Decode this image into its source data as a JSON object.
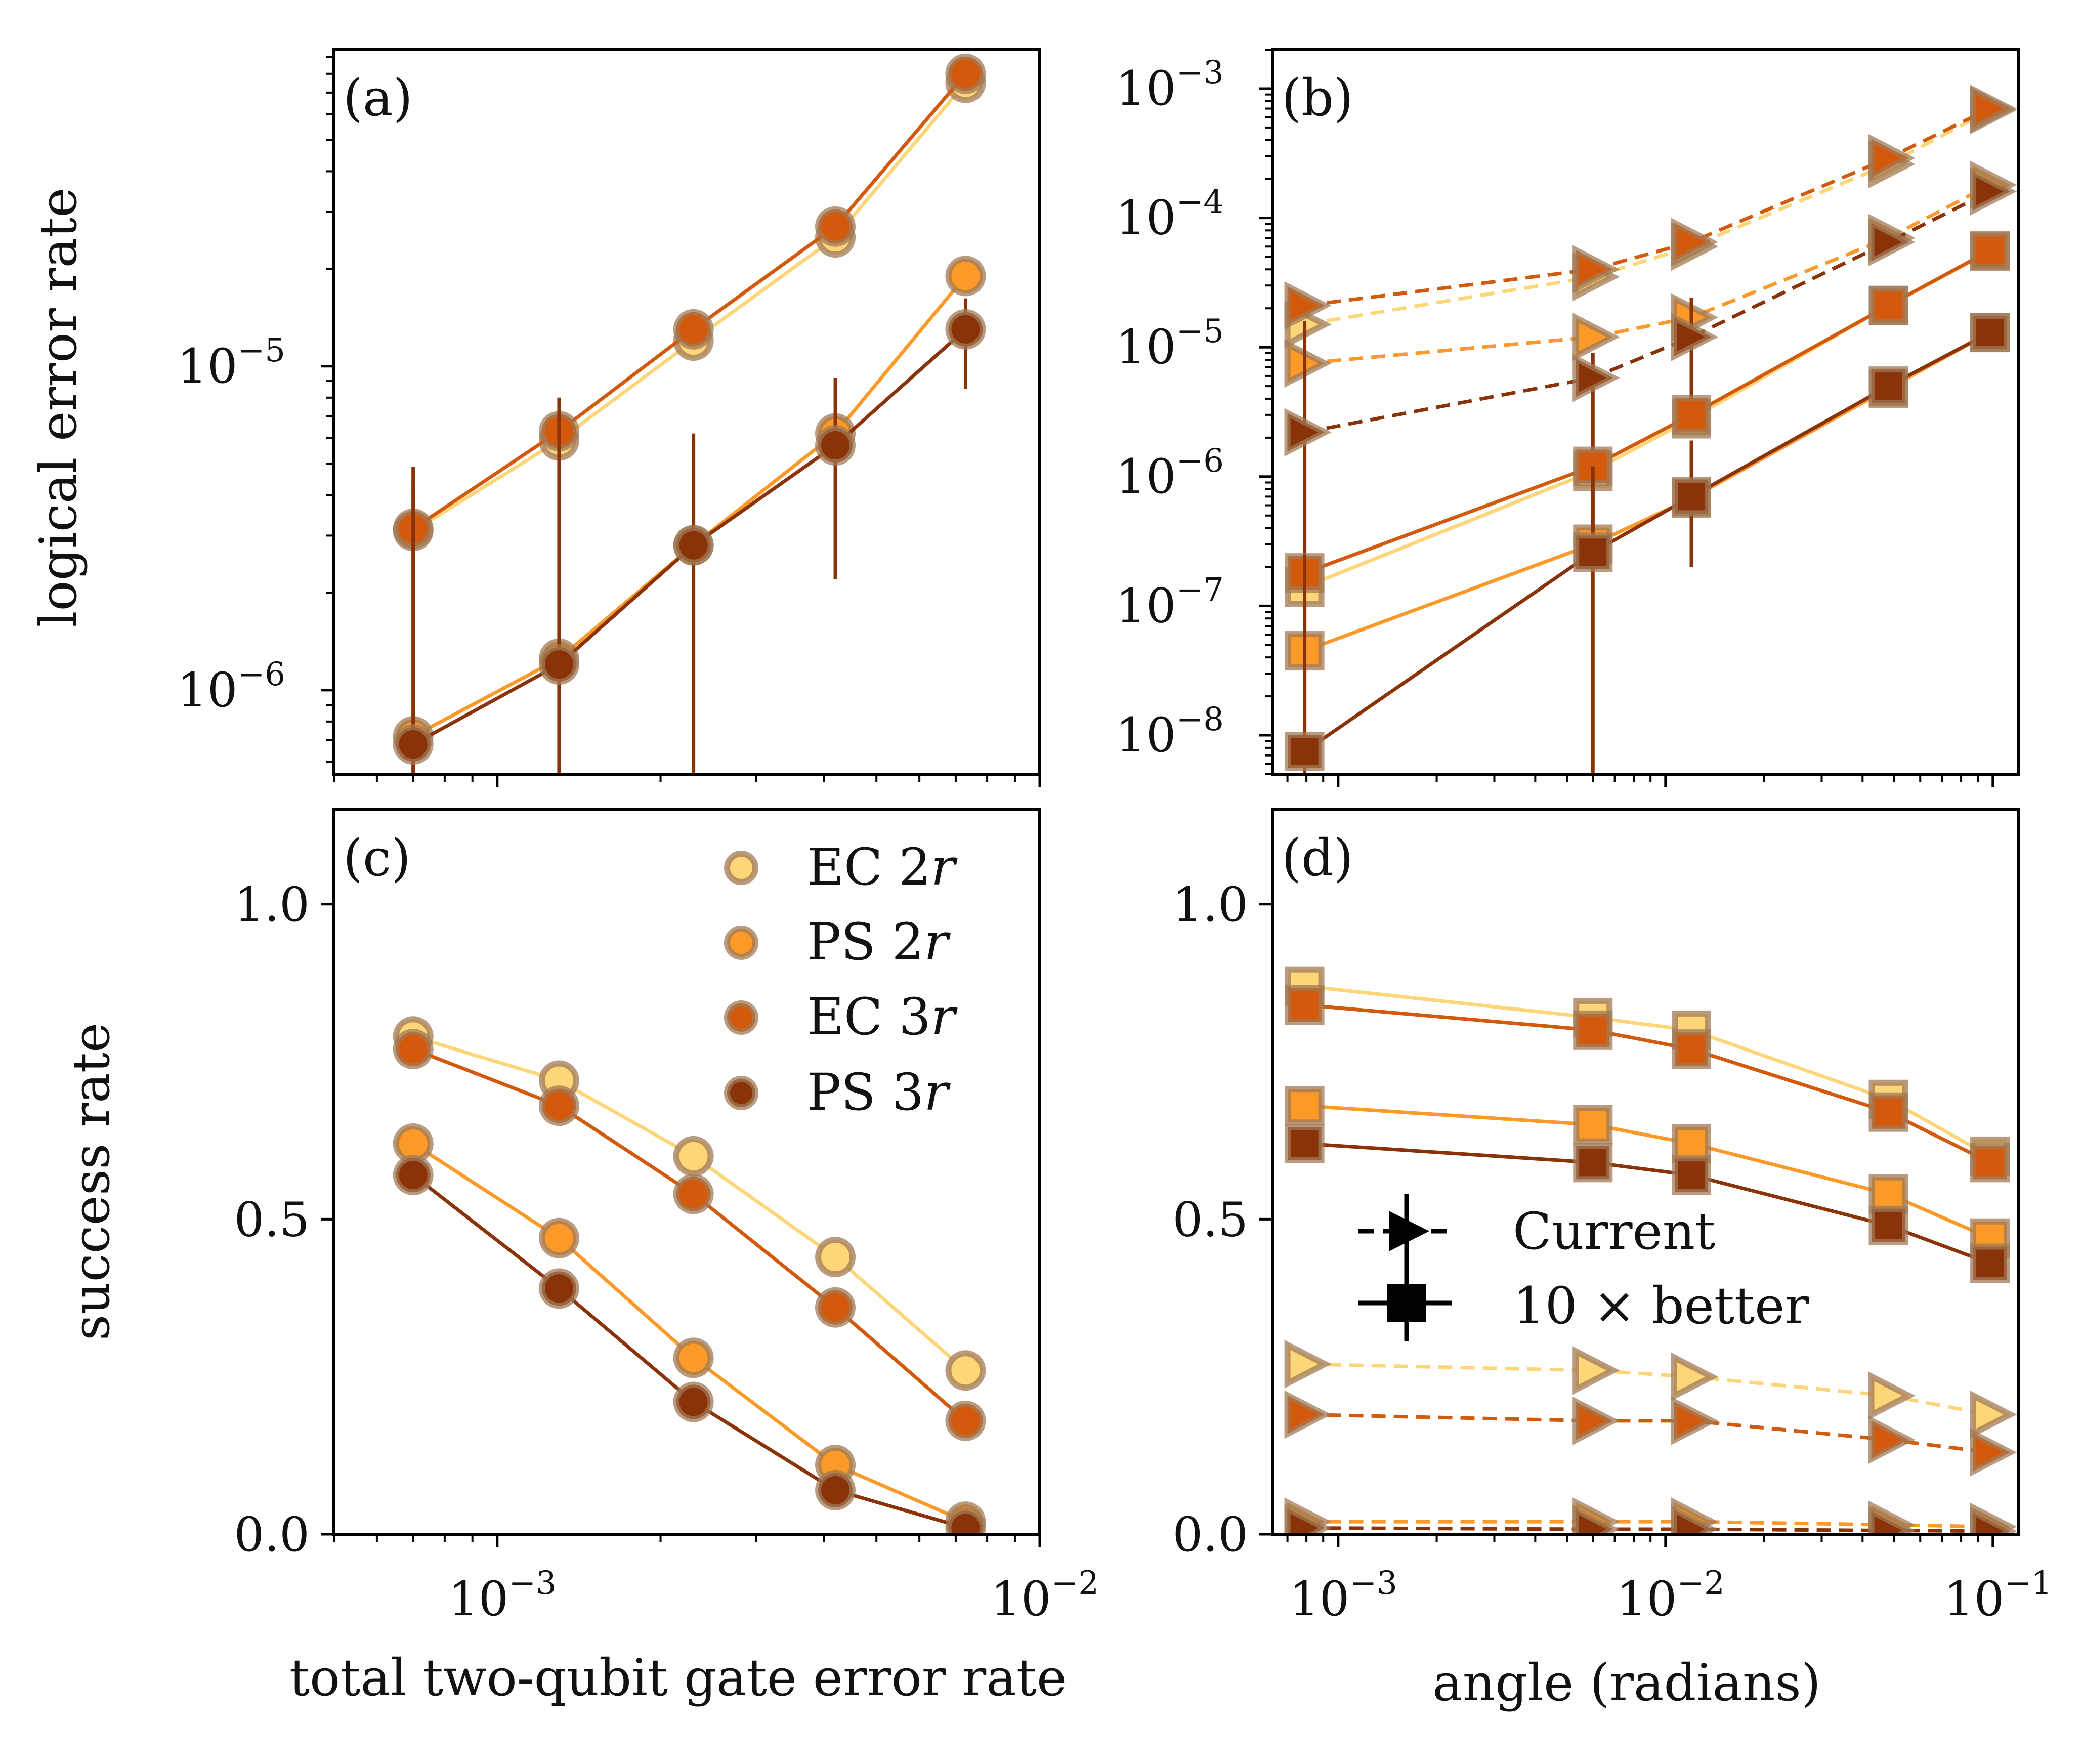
{
  "colors": {
    "EC 2r": "#fdd67a",
    "PS 2r": "#fb9a29",
    "EC 3r": "#d35a0c",
    "PS 3r": "#8a3208",
    "marker_edge": "#a07a55"
  },
  "axis_labels": {
    "ylabel_top": "logical error rate",
    "ylabel_bottom": "success rate",
    "xlabel_left": "total two-qubit gate error rate",
    "xlabel_right": "angle (radians)"
  },
  "legend_c": {
    "items": [
      {
        "name": "EC 2r",
        "prefix": "EC 2",
        "var": "r"
      },
      {
        "name": "PS 2r",
        "prefix": "PS 2",
        "var": "r"
      },
      {
        "name": "EC 3r",
        "prefix": "EC 3",
        "var": "r"
      },
      {
        "name": "PS 3r",
        "prefix": "PS 3",
        "var": "r"
      }
    ]
  },
  "legend_d": {
    "current": "Current",
    "better": "10 × better"
  },
  "chart_data": [
    {
      "panel": "(a)",
      "type": "line",
      "xscale": "log",
      "yscale": "log",
      "xlim": [
        0.0005,
        0.01
      ],
      "ylim": [
        5.5e-07,
        9.5e-05
      ],
      "xticks": [
        {
          "v": 0.001,
          "base": "10",
          "exp": "−3"
        },
        {
          "v": 0.01,
          "base": "10",
          "exp": "−2"
        }
      ],
      "yticks": [
        {
          "v": 1e-06,
          "base": "10",
          "exp": "−6"
        },
        {
          "v": 1e-05,
          "base": "10",
          "exp": "−5"
        }
      ],
      "xlabel": "",
      "ylabel": "logical error rate",
      "x": [
        0.0007,
        0.0013,
        0.0023,
        0.0042,
        0.0073
      ],
      "series": [
        {
          "name": "EC 2r",
          "marker": "circle",
          "dashed": false,
          "values": [
            3.1e-06,
            5.9e-06,
            1.2e-05,
            2.5e-05,
            7.5e-05
          ],
          "err": [
            null,
            null,
            null,
            null,
            null
          ]
        },
        {
          "name": "PS 2r",
          "marker": "circle",
          "dashed": false,
          "values": [
            7.2e-07,
            1.25e-06,
            2.8e-06,
            6.2e-06,
            1.9e-05
          ],
          "err": [
            null,
            null,
            null,
            null,
            null
          ]
        },
        {
          "name": "EC 3r",
          "marker": "circle",
          "dashed": false,
          "values": [
            3.15e-06,
            6.3e-06,
            1.3e-05,
            2.7e-05,
            8e-05
          ],
          "err": [
            [
              1e-07,
              4.4e-06
            ],
            [
              1e-07,
              7.5e-06
            ],
            null,
            null,
            null
          ]
        },
        {
          "name": "PS 3r",
          "marker": "circle",
          "dashed": false,
          "values": [
            6.8e-07,
            1.2e-06,
            2.8e-06,
            5.7e-06,
            1.3e-05
          ],
          "err": [
            [
              1e-07,
              4.9e-06
            ],
            [
              1e-07,
              8e-06
            ],
            [
              1e-07,
              6.2e-06
            ],
            [
              2.2e-06,
              9.2e-06
            ],
            [
              8.5e-06,
              1.62e-05
            ]
          ]
        }
      ]
    },
    {
      "panel": "(b)",
      "type": "line",
      "xscale": "log",
      "yscale": "log",
      "xlim": [
        0.00063,
        0.12
      ],
      "ylim": [
        5e-09,
        0.002
      ],
      "xticks": [
        {
          "v": 0.001,
          "base": "10",
          "exp": "−3"
        },
        {
          "v": 0.01,
          "base": "10",
          "exp": "−2"
        },
        {
          "v": 0.1,
          "base": "10",
          "exp": "−1"
        }
      ],
      "yticks": [
        {
          "v": 1e-08,
          "base": "10",
          "exp": "−8"
        },
        {
          "v": 1e-07,
          "base": "10",
          "exp": "−7"
        },
        {
          "v": 1e-06,
          "base": "10",
          "exp": "−6"
        },
        {
          "v": 1e-05,
          "base": "10",
          "exp": "−5"
        },
        {
          "v": 0.0001,
          "base": "10",
          "exp": "−4"
        },
        {
          "v": 0.001,
          "base": "10",
          "exp": "−3"
        }
      ],
      "xlabel": "",
      "ylabel": "",
      "x": [
        0.00079,
        0.006,
        0.012,
        0.048,
        0.098
      ],
      "series": [
        {
          "name": "EC 2r current",
          "color_key": "EC 2r",
          "marker": "triangle-right",
          "dashed": true,
          "values": [
            1.5e-05,
            3.5e-05,
            6e-05,
            0.00026,
            0.00068
          ],
          "err": [
            null,
            null,
            null,
            null,
            null
          ]
        },
        {
          "name": "PS 2r current",
          "color_key": "PS 2r",
          "marker": "triangle-right",
          "dashed": true,
          "values": [
            7.5e-06,
            1.2e-05,
            1.7e-05,
            7e-05,
            0.00018
          ],
          "err": [
            null,
            null,
            null,
            null,
            null
          ]
        },
        {
          "name": "EC 3r current",
          "color_key": "EC 3r",
          "marker": "triangle-right",
          "dashed": true,
          "values": [
            2.1e-05,
            4e-05,
            6.5e-05,
            0.00029,
            0.0007
          ],
          "err": [
            null,
            null,
            null,
            null,
            null
          ]
        },
        {
          "name": "PS 3r current",
          "color_key": "PS 3r",
          "marker": "triangle-right",
          "dashed": true,
          "values": [
            2.2e-06,
            5.8e-06,
            1.2e-05,
            6.5e-05,
            0.00016
          ],
          "err": [
            [
              1e-08,
              1.6e-05
            ],
            [
              2.5e-07,
              9e-06
            ],
            [
              2.5e-06,
              2.4e-05
            ],
            null,
            null
          ]
        },
        {
          "name": "EC 2r 10x",
          "color_key": "EC 2r",
          "marker": "square",
          "dashed": false,
          "values": [
            1.4e-07,
            1.1e-06,
            2.8e-06,
            2.1e-05,
            5.5e-05
          ],
          "err": [
            null,
            null,
            null,
            null,
            null
          ]
        },
        {
          "name": "PS 2r 10x",
          "color_key": "PS 2r",
          "marker": "square",
          "dashed": false,
          "values": [
            4.5e-08,
            3e-07,
            6.8e-07,
            4.8e-06,
            1.3e-05
          ],
          "err": [
            null,
            null,
            null,
            null,
            null
          ]
        },
        {
          "name": "EC 3r 10x",
          "color_key": "EC 3r",
          "marker": "square",
          "dashed": false,
          "values": [
            1.8e-07,
            1.2e-06,
            3e-06,
            2.1e-05,
            5.6e-05
          ],
          "err": [
            null,
            null,
            null,
            null,
            null
          ]
        },
        {
          "name": "PS 3r 10x",
          "color_key": "PS 3r",
          "marker": "square",
          "dashed": false,
          "values": [
            7.5e-09,
            2.6e-07,
            7e-07,
            5e-06,
            1.3e-05
          ],
          "err": [
            [
              5e-09,
              2.5e-07
            ],
            [
              5e-09,
              1.2e-06
            ],
            [
              2e-07,
              1.9e-06
            ],
            null,
            null
          ]
        }
      ]
    },
    {
      "panel": "(c)",
      "type": "line",
      "xscale": "log",
      "yscale": "linear",
      "xlim": [
        0.0005,
        0.01
      ],
      "ylim": [
        0,
        1.15
      ],
      "xticks": [
        {
          "v": 0.001,
          "base": "10",
          "exp": "−3"
        },
        {
          "v": 0.01,
          "base": "10",
          "exp": "−2"
        }
      ],
      "yticks": [
        {
          "v": 0,
          "label": "0.0"
        },
        {
          "v": 0.5,
          "label": "0.5"
        },
        {
          "v": 1.0,
          "label": "1.0"
        }
      ],
      "xlabel": "total two-qubit gate error rate",
      "ylabel": "success rate",
      "x": [
        0.0007,
        0.0013,
        0.0023,
        0.0042,
        0.0073
      ],
      "series": [
        {
          "name": "EC 2r",
          "marker": "circle",
          "dashed": false,
          "values": [
            0.79,
            0.72,
            0.6,
            0.44,
            0.26
          ],
          "err": [
            null,
            null,
            null,
            null,
            null
          ]
        },
        {
          "name": "PS 2r",
          "marker": "circle",
          "dashed": false,
          "values": [
            0.62,
            0.47,
            0.28,
            0.11,
            0.02
          ],
          "err": [
            null,
            null,
            null,
            null,
            null
          ]
        },
        {
          "name": "EC 3r",
          "marker": "circle",
          "dashed": false,
          "values": [
            0.77,
            0.68,
            0.54,
            0.36,
            0.18
          ],
          "err": [
            null,
            null,
            null,
            null,
            null
          ]
        },
        {
          "name": "PS 3r",
          "marker": "circle",
          "dashed": false,
          "values": [
            0.57,
            0.39,
            0.21,
            0.07,
            0.01
          ],
          "err": [
            null,
            null,
            null,
            null,
            null
          ]
        }
      ]
    },
    {
      "panel": "(d)",
      "type": "line",
      "xscale": "log",
      "yscale": "linear",
      "xlim": [
        0.00063,
        0.12
      ],
      "ylim": [
        0,
        1.15
      ],
      "xticks": [
        {
          "v": 0.001,
          "base": "10",
          "exp": "−3"
        },
        {
          "v": 0.01,
          "base": "10",
          "exp": "−2"
        },
        {
          "v": 0.1,
          "base": "10",
          "exp": "−1"
        }
      ],
      "yticks": [
        {
          "v": 0,
          "label": "0.0"
        },
        {
          "v": 0.5,
          "label": "0.5"
        },
        {
          "v": 1.0,
          "label": "1.0"
        }
      ],
      "xlabel": "angle (radians)",
      "ylabel": "",
      "x": [
        0.00079,
        0.006,
        0.012,
        0.048,
        0.098
      ],
      "series": [
        {
          "name": "EC 2r current",
          "color_key": "EC 2r",
          "marker": "triangle-right",
          "dashed": true,
          "values": [
            0.27,
            0.26,
            0.25,
            0.22,
            0.19
          ],
          "err": [
            null,
            null,
            null,
            null,
            null
          ]
        },
        {
          "name": "EC 3r current",
          "color_key": "EC 3r",
          "marker": "triangle-right",
          "dashed": true,
          "values": [
            0.19,
            0.18,
            0.18,
            0.15,
            0.13
          ],
          "err": [
            null,
            null,
            null,
            null,
            null
          ]
        },
        {
          "name": "PS 2r current",
          "color_key": "PS 2r",
          "marker": "triangle-right",
          "dashed": true,
          "values": [
            0.02,
            0.02,
            0.02,
            0.015,
            0.012
          ],
          "err": [
            null,
            null,
            null,
            null,
            null
          ]
        },
        {
          "name": "PS 3r current",
          "color_key": "PS 3r",
          "marker": "triangle-right",
          "dashed": true,
          "values": [
            0.01,
            0.008,
            0.008,
            0.006,
            0.005
          ],
          "err": [
            null,
            null,
            null,
            null,
            null
          ]
        },
        {
          "name": "EC 2r 10x",
          "color_key": "EC 2r",
          "marker": "square",
          "dashed": false,
          "values": [
            0.87,
            0.82,
            0.8,
            0.69,
            0.6
          ],
          "err": [
            null,
            null,
            null,
            null,
            null
          ]
        },
        {
          "name": "EC 3r 10x",
          "color_key": "EC 3r",
          "marker": "square",
          "dashed": false,
          "values": [
            0.84,
            0.8,
            0.77,
            0.67,
            0.59
          ],
          "err": [
            null,
            null,
            null,
            null,
            null
          ]
        },
        {
          "name": "PS 2r 10x",
          "color_key": "PS 2r",
          "marker": "square",
          "dashed": false,
          "values": [
            0.68,
            0.65,
            0.62,
            0.54,
            0.47
          ],
          "err": [
            null,
            null,
            null,
            null,
            null
          ]
        },
        {
          "name": "PS 3r 10x",
          "color_key": "PS 3r",
          "marker": "square",
          "dashed": false,
          "values": [
            0.62,
            0.59,
            0.57,
            0.49,
            0.43
          ],
          "err": [
            null,
            null,
            null,
            null,
            null
          ]
        }
      ]
    }
  ]
}
